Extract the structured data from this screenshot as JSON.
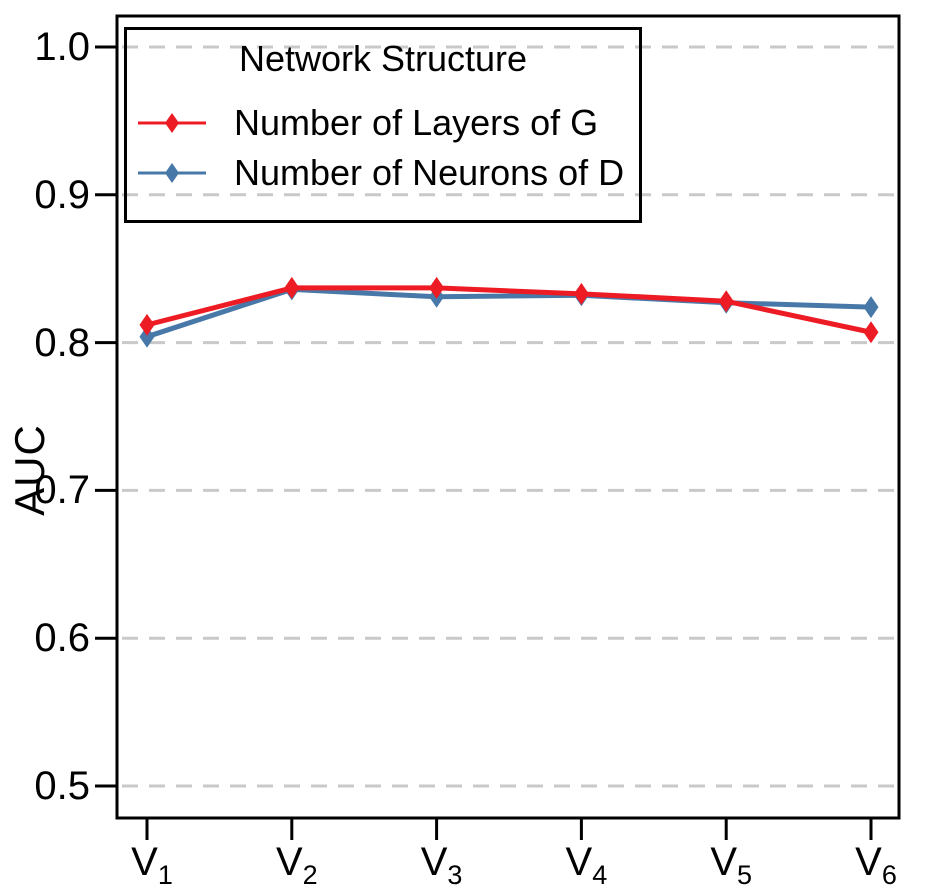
{
  "chart_data": {
    "type": "line",
    "title": "",
    "xlabel": "",
    "ylabel": "AUC",
    "categories": [
      "V1",
      "V2",
      "V3",
      "V4",
      "V5",
      "V6"
    ],
    "x_ticks": [
      {
        "base": "V",
        "sub": "1"
      },
      {
        "base": "V",
        "sub": "2"
      },
      {
        "base": "V",
        "sub": "3"
      },
      {
        "base": "V",
        "sub": "4"
      },
      {
        "base": "V",
        "sub": "5"
      },
      {
        "base": "V",
        "sub": "6"
      }
    ],
    "y_ticks": [
      1.0,
      0.9,
      0.8,
      0.7,
      0.6,
      0.5
    ],
    "y_tick_labels": [
      "1.0",
      "0.9",
      "0.8",
      "0.7",
      "0.6",
      "0.5"
    ],
    "ylim": [
      0.48,
      1.02
    ],
    "grid": "horizontal-dashed",
    "gridline_color": "#c9c9c9",
    "axis_color": "#000000",
    "legend": {
      "title": "Network Structure",
      "position": "top-left"
    },
    "series": [
      {
        "name": "Number of Layers of G",
        "color": "#ed1c24",
        "marker": "diamond",
        "values": [
          0.812,
          0.837,
          0.837,
          0.833,
          0.828,
          0.807
        ]
      },
      {
        "name": "Number of Neurons of D",
        "color": "#4878a8",
        "marker": "diamond",
        "values": [
          0.804,
          0.836,
          0.831,
          0.832,
          0.827,
          0.824
        ]
      }
    ]
  }
}
